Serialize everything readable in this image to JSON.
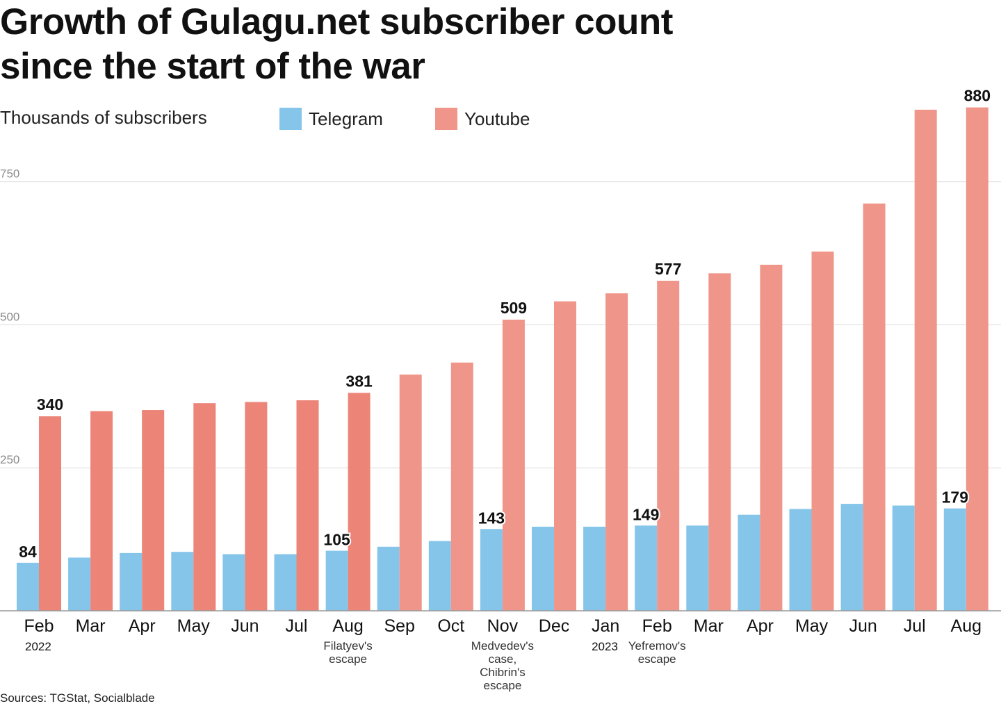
{
  "title_line1": "Growth of Gulagu.net subscriber count",
  "title_line2": "since the start of the war",
  "subtitle": "Thousands of subscribers",
  "source": "Sources: TGStat, Socialblade",
  "colors": {
    "telegram": "#86c5ea",
    "youtube": "#f0958a",
    "youtube_highlight": "#ec8578"
  },
  "chart_data": {
    "type": "bar",
    "categories": [
      "Feb",
      "Mar",
      "Apr",
      "May",
      "Jun",
      "Jul",
      "Aug",
      "Sep",
      "Oct",
      "Nov",
      "Dec",
      "Jan",
      "Feb",
      "Mar",
      "Apr",
      "May",
      "Jun",
      "Jul",
      "Aug"
    ],
    "year_labels": [
      "2022",
      "",
      "",
      "",
      "",
      "",
      "",
      "",
      "",
      "",
      "",
      "2023",
      "",
      "",
      "",
      "",
      "",
      "",
      ""
    ],
    "event_labels": [
      "",
      "",
      "",
      "",
      "",
      "",
      "Filatyev's escape",
      "",
      "",
      "Medvedev's case, Chibrin's escape",
      "",
      "",
      "Yefremov's escape",
      "",
      "",
      "",
      "",
      "",
      ""
    ],
    "highlight_youtube": [
      true,
      true,
      true,
      true,
      true,
      true,
      true,
      false,
      false,
      false,
      false,
      false,
      false,
      false,
      false,
      false,
      false,
      false,
      false
    ],
    "series": [
      {
        "name": "Telegram",
        "values": [
          84,
          93,
          101,
          103,
          99,
          99,
          105,
          112,
          122,
          143,
          147,
          147,
          149,
          149,
          168,
          178,
          187,
          184,
          179
        ],
        "labels": [
          "84",
          "",
          "",
          "",
          "",
          "",
          "105",
          "",
          "",
          "143",
          "",
          "",
          "149",
          "",
          "",
          "",
          "",
          "",
          "179"
        ]
      },
      {
        "name": "Youtube",
        "values": [
          340,
          349,
          351,
          363,
          365,
          368,
          381,
          413,
          434,
          509,
          541,
          555,
          577,
          590,
          605,
          628,
          712,
          876,
          880
        ],
        "labels": [
          "340",
          "",
          "",
          "",
          "",
          "",
          "381",
          "",
          "",
          "509",
          "",
          "",
          "577",
          "",
          "",
          "",
          "",
          "",
          "880"
        ]
      }
    ],
    "yticks": [
      250,
      500,
      750
    ],
    "ylim": [
      0,
      895
    ],
    "xlabel": "",
    "ylabel": "Thousands of subscribers",
    "grid": true,
    "legend_position": "top"
  }
}
